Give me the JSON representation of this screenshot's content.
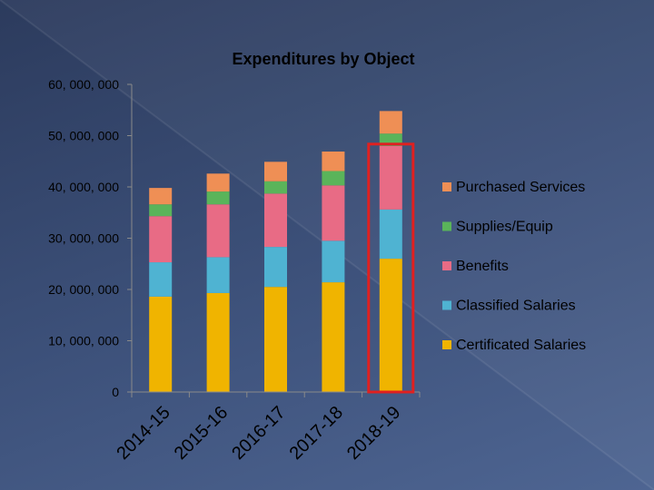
{
  "chart_data": {
    "type": "bar",
    "stacked": true,
    "title": "Expenditures by Object",
    "categories": [
      "2014-15",
      "2015-16",
      "2016-17",
      "2017-18",
      "2018-19"
    ],
    "series": [
      {
        "name": "Certificated Salaries",
        "color": "#f0b400",
        "values": [
          18600000,
          19300000,
          20500000,
          21400000,
          26000000
        ]
      },
      {
        "name": "Classified Salaries",
        "color": "#4fb3d2",
        "values": [
          6700000,
          7000000,
          7800000,
          8100000,
          9600000
        ]
      },
      {
        "name": "Benefits",
        "color": "#e86b85",
        "values": [
          9000000,
          10300000,
          10400000,
          10800000,
          12400000
        ]
      },
      {
        "name": "Supplies/Equip",
        "color": "#5ab45a",
        "values": [
          2300000,
          2500000,
          2400000,
          2800000,
          2400000
        ]
      },
      {
        "name": "Purchased Services",
        "color": "#ef8f55",
        "values": [
          3200000,
          3500000,
          3800000,
          3800000,
          4400000
        ]
      }
    ],
    "ylim": [
      0,
      60000000
    ],
    "yticks": [
      0,
      10000000,
      20000000,
      30000000,
      40000000,
      50000000,
      60000000
    ],
    "ytick_labels": [
      "0",
      "10, 000, 000",
      "20, 000, 000",
      "30, 000, 000",
      "40, 000, 000",
      "50, 000, 000",
      "60, 000, 000"
    ],
    "grid": false,
    "legend": "right",
    "highlight": {
      "category": "2018-19",
      "color": "#e02020"
    }
  }
}
